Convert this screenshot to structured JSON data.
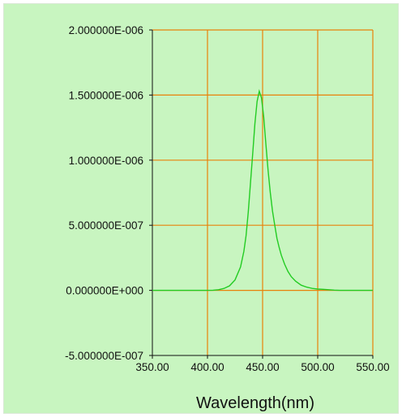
{
  "chart_data": {
    "type": "line",
    "title": "",
    "xlabel": "Wavelength(nm)",
    "ylabel": "",
    "xlim": [
      350,
      550
    ],
    "ylim": [
      -5e-07,
      2e-06
    ],
    "x_ticks": [
      350,
      400,
      450,
      500,
      550
    ],
    "x_tick_labels": [
      "350.00",
      "400.00",
      "450.00",
      "500.00",
      "550.00"
    ],
    "y_ticks": [
      -5e-07,
      0,
      5e-07,
      1e-06,
      1.5e-06,
      2e-06
    ],
    "y_tick_labels": [
      "-5.000000E-007",
      "0.000000E+000",
      "5.000000E-007",
      "1.000000E-006",
      "1.500000E-006",
      "2.000000E-006"
    ],
    "grid": true,
    "legend": "none",
    "colors": {
      "background": "#c8f5c0",
      "grid": "#e8820a",
      "axis": "#111111",
      "series": "#22cc22"
    },
    "series": [
      {
        "x": [
          350,
          400,
          405,
          410,
          415,
          420,
          425,
          430,
          433,
          435,
          437,
          439,
          441,
          443,
          445,
          447,
          449,
          451,
          453,
          455,
          457,
          459,
          461,
          463,
          465,
          467,
          470,
          473,
          476,
          480,
          485,
          490,
          495,
          500,
          505,
          510,
          515,
          520,
          530,
          550
        ],
        "y": [
          0,
          0,
          1e-09,
          5e-09,
          1.5e-08,
          3.5e-08,
          8e-08,
          1.8e-07,
          3e-07,
          4.2e-07,
          6e-07,
          8.2e-07,
          1.05e-06,
          1.28e-06,
          1.45e-06,
          1.53e-06,
          1.48e-06,
          1.33e-06,
          1.12e-06,
          9.2e-07,
          7.5e-07,
          6.1e-07,
          5e-07,
          4e-07,
          3.3e-07,
          2.7e-07,
          2e-07,
          1.45e-07,
          1.05e-07,
          7e-08,
          4e-08,
          2.5e-08,
          1.5e-08,
          1e-08,
          8e-09,
          5e-09,
          2e-09,
          0,
          0,
          0
        ]
      }
    ]
  }
}
